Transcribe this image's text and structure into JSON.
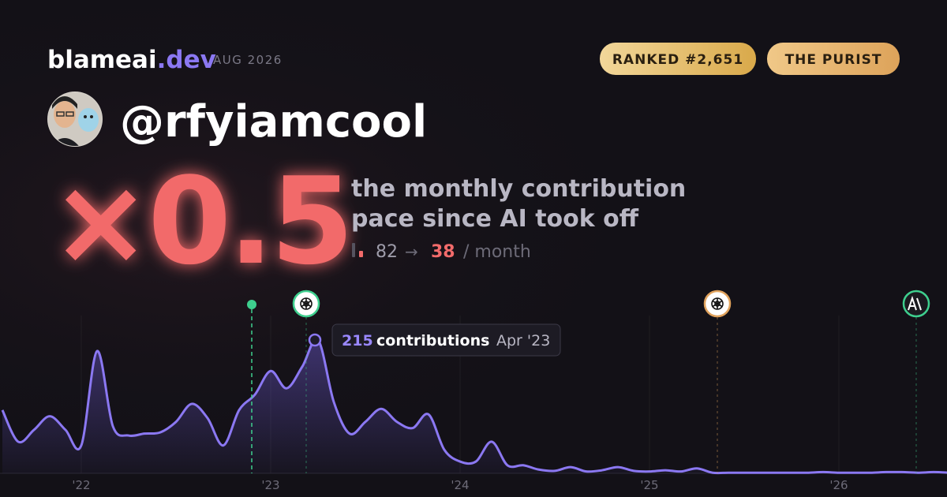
{
  "header": {
    "brand": "blameai",
    "tld": ".dev",
    "date": "AUG 2026",
    "badges": [
      "RANKED #2,651",
      "THE PURIST"
    ]
  },
  "username": "@rfyiamcool",
  "headline": {
    "multiplier": "×0.5",
    "lines": [
      "the monthly contribution",
      "pace since AI took off"
    ]
  },
  "pace": {
    "before": 82,
    "arrow": "→",
    "after": 38,
    "unit": "/ month"
  },
  "tooltip": {
    "unit": "contributions",
    "separator": "·",
    "date": "Apr '23"
  },
  "chart_data": {
    "type": "line",
    "color": "#8b78f2",
    "categories": [
      null,
      null,
      null,
      null,
      null,
      "'22",
      null,
      null,
      null,
      null,
      null,
      null,
      null,
      null,
      null,
      null,
      null,
      "'23",
      null,
      null,
      null,
      null,
      null,
      null,
      null,
      null,
      null,
      null,
      null,
      "'24",
      null,
      null,
      null,
      null,
      null,
      null,
      null,
      null,
      null,
      null,
      null,
      "'25",
      null,
      null,
      null,
      null,
      null,
      null,
      null,
      null,
      null,
      null,
      null,
      "'26",
      null,
      null,
      null,
      null,
      null,
      null,
      null
    ],
    "values": [
      102,
      51,
      70,
      92,
      70,
      45,
      197,
      76,
      61,
      64,
      66,
      83,
      112,
      89,
      45,
      102,
      127,
      165,
      137,
      172,
      215,
      115,
      64,
      83,
      104,
      83,
      73,
      95,
      38,
      19,
      19,
      51,
      13,
      13,
      6,
      4,
      10,
      3,
      5,
      10,
      4,
      3,
      5,
      3,
      8,
      1,
      1,
      1,
      1,
      1,
      1,
      1,
      2,
      1,
      1,
      1,
      2,
      2,
      1,
      2,
      1
    ],
    "ylim": [
      0,
      220
    ]
  }
}
